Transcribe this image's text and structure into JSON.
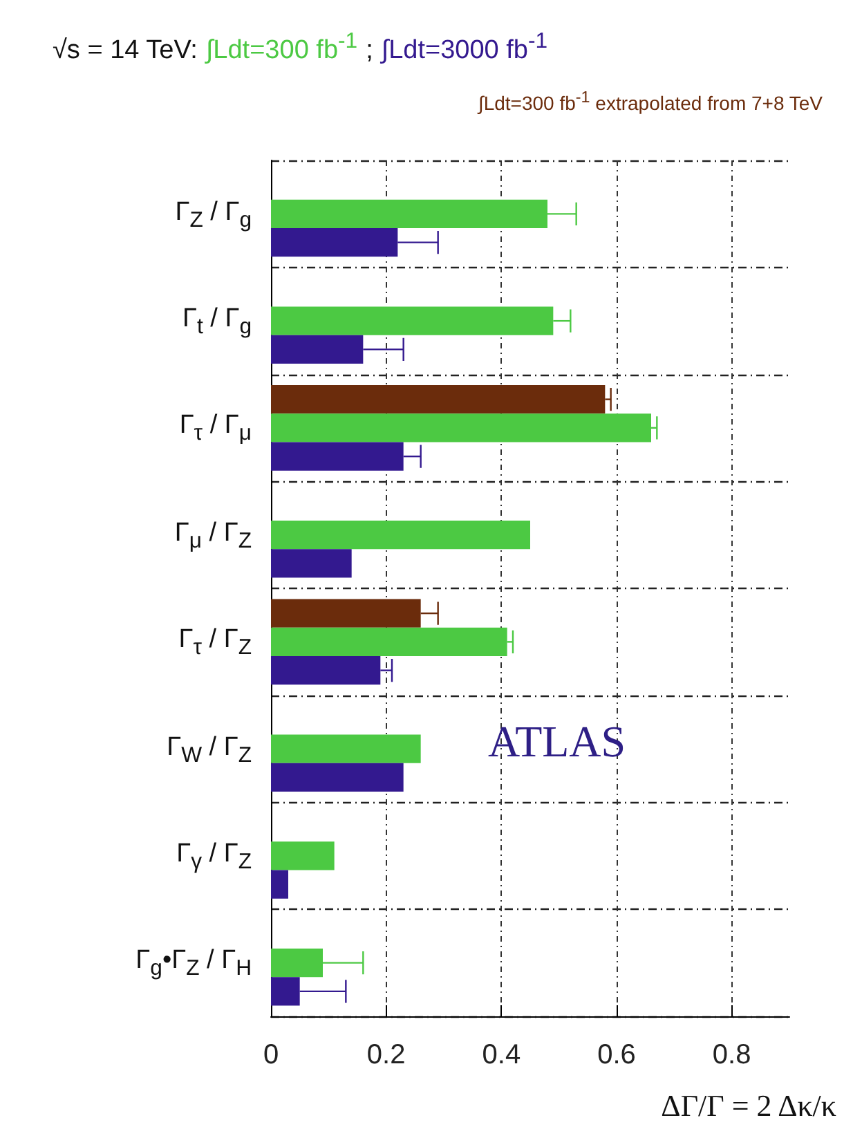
{
  "chart_data": {
    "type": "bar",
    "orientation": "horizontal",
    "title": "√s = 14 TeV:",
    "xlabel": "ΔΓ/Γ = 2 Δκ/κ",
    "categories": [
      "Γ$_{Z}$ / Γ$_{g}$",
      "Γ$_{t}$ / Γ$_{g}$",
      "Γ$_{τ}$ / Γ$_{μ}$",
      "Γ$_{μ}$ / Γ$_{Z}$",
      "Γ$_{τ}$ / Γ$_{Z}$",
      "Γ$_{W}$ / Γ$_{Z}$",
      "Γ$_{γ}$ / Γ$_{Z}$",
      "Γ$_{g}$•Γ$_{Z}$ / Γ$_{H}$"
    ],
    "series": [
      {
        "name": "∫Ldt=300 fb$^{-1}$ extrapolated from 7+8 TeV",
        "color": "#6b2c0c",
        "values": [
          null,
          null,
          0.58,
          null,
          0.26,
          null,
          null,
          null
        ],
        "errors": [
          null,
          null,
          [
            0.58,
            0.59
          ],
          null,
          [
            0.26,
            0.29
          ],
          null,
          null,
          null
        ]
      },
      {
        "name": "∫Ldt=300 fb$^{-1}$",
        "color": "#4cc943",
        "values": [
          0.48,
          0.49,
          0.66,
          0.45,
          0.41,
          0.26,
          0.11,
          0.09
        ],
        "errors": [
          [
            0.48,
            0.53
          ],
          [
            0.49,
            0.52
          ],
          [
            0.66,
            0.67
          ],
          null,
          [
            0.41,
            0.42
          ],
          null,
          null,
          [
            0.09,
            0.16
          ]
        ]
      },
      {
        "name": "∫Ldt=3000 fb$^{-1}$",
        "color": "#33198f",
        "values": [
          0.22,
          0.16,
          0.23,
          0.14,
          0.19,
          0.23,
          0.03,
          0.05
        ],
        "errors": [
          [
            0.22,
            0.29
          ],
          [
            0.16,
            0.23
          ],
          [
            0.23,
            0.26
          ],
          null,
          [
            0.19,
            0.21
          ],
          null,
          null,
          [
            0.05,
            0.13
          ]
        ]
      }
    ],
    "xlim": [
      0,
      0.9
    ],
    "xticks": [
      0,
      0.2,
      0.4,
      0.6,
      0.8
    ],
    "grid": true,
    "legend": "top",
    "annotations": [
      ";",
      "ATLAS"
    ]
  }
}
